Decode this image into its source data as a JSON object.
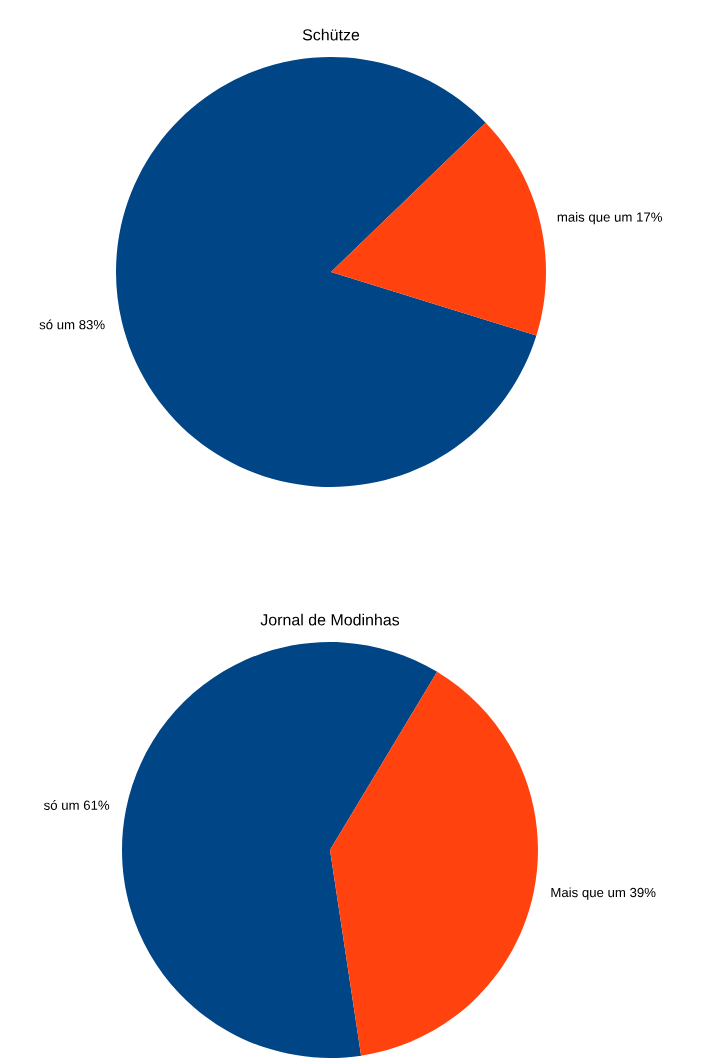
{
  "chart_data": [
    {
      "type": "pie",
      "title": "Schütze",
      "categories": [
        "só um",
        "mais que um"
      ],
      "values": [
        83,
        17
      ],
      "value_labels": [
        "83%",
        "17%"
      ],
      "colors": [
        "#004586",
        "#ff420e"
      ]
    },
    {
      "type": "pie",
      "title": "Jornal de Modinhas",
      "categories": [
        "só um",
        "Mais que um"
      ],
      "values": [
        61,
        39
      ],
      "value_labels": [
        "61%",
        "39%"
      ],
      "colors": [
        "#004586",
        "#ff420e"
      ]
    }
  ]
}
